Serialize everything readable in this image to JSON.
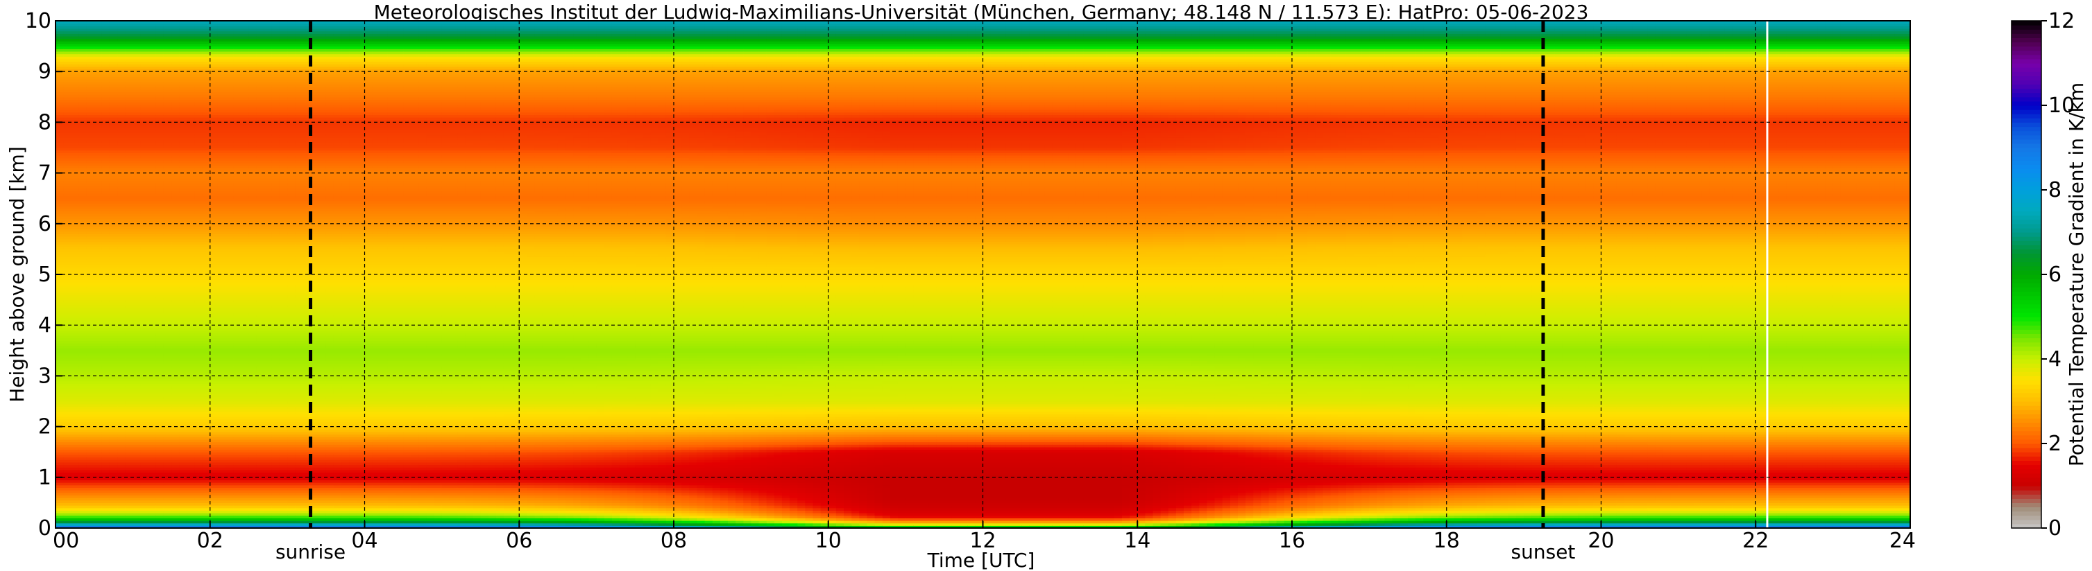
{
  "chart_data": {
    "type": "heatmap",
    "title": "Meteorologisches Institut der Ludwig-Maximilians-Universität (München, Germany; 48.148 N / 11.573 E):    HatPro: 05-06-2023",
    "xlabel": "Time [UTC]",
    "ylabel": "Height above ground [km]",
    "colorbar_label": "Potential Temperature Gradient in K/km",
    "xlim": [
      0,
      24
    ],
    "ylim": [
      0,
      10
    ],
    "clim": [
      0,
      12
    ],
    "x_ticks": [
      0,
      2,
      4,
      6,
      8,
      10,
      12,
      14,
      16,
      18,
      20,
      22,
      24
    ],
    "x_tick_labels": [
      "00",
      "02",
      "04",
      "06",
      "08",
      "10",
      "12",
      "14",
      "16",
      "18",
      "20",
      "22",
      "24"
    ],
    "y_ticks": [
      0,
      1,
      2,
      3,
      4,
      5,
      6,
      7,
      8,
      9,
      10
    ],
    "y_tick_labels": [
      "0",
      "1",
      "2",
      "3",
      "4",
      "5",
      "6",
      "7",
      "8",
      "9",
      "10"
    ],
    "colorbar_ticks": [
      0,
      2,
      4,
      6,
      8,
      10,
      12
    ],
    "colorbar_tick_labels": [
      "0",
      "2",
      "4",
      "6",
      "8",
      "10",
      "12"
    ],
    "grid": true,
    "colormap": [
      {
        "v": 0,
        "color": "#c8c8c8"
      },
      {
        "v": 0.5,
        "color": "#a08c78"
      },
      {
        "v": 1.0,
        "color": "#c80000"
      },
      {
        "v": 1.5,
        "color": "#e40000"
      },
      {
        "v": 2.0,
        "color": "#ff5a00"
      },
      {
        "v": 2.5,
        "color": "#ff8c00"
      },
      {
        "v": 3.0,
        "color": "#ffbe00"
      },
      {
        "v": 3.5,
        "color": "#ffe000"
      },
      {
        "v": 4.0,
        "color": "#c8f000"
      },
      {
        "v": 4.5,
        "color": "#78e600"
      },
      {
        "v": 5.0,
        "color": "#00e600"
      },
      {
        "v": 5.5,
        "color": "#00c800"
      },
      {
        "v": 6.0,
        "color": "#00aa00"
      },
      {
        "v": 6.5,
        "color": "#009632"
      },
      {
        "v": 7.0,
        "color": "#009a8c"
      },
      {
        "v": 7.5,
        "color": "#00aabe"
      },
      {
        "v": 8.0,
        "color": "#00a0dc"
      },
      {
        "v": 8.5,
        "color": "#0a8cf0"
      },
      {
        "v": 9.0,
        "color": "#1478e6"
      },
      {
        "v": 9.5,
        "color": "#0a50dc"
      },
      {
        "v": 10.0,
        "color": "#0000c8"
      },
      {
        "v": 10.5,
        "color": "#5000b4"
      },
      {
        "v": 11.0,
        "color": "#7800aa"
      },
      {
        "v": 11.5,
        "color": "#500050"
      },
      {
        "v": 12.0,
        "color": "#000000"
      }
    ],
    "profile": {
      "heights_km": [
        0,
        0.1,
        0.2,
        0.3,
        0.45,
        0.6,
        1.0,
        1.5,
        2.0,
        2.5,
        3.0,
        3.5,
        4.0,
        4.5,
        5.0,
        5.5,
        6.0,
        6.5,
        7.0,
        7.5,
        8.0,
        8.5,
        9.0,
        9.3,
        9.5,
        9.7,
        10.0
      ],
      "values_night": [
        9.5,
        7.0,
        5.0,
        4.0,
        3.0,
        2.6,
        1.4,
        2.0,
        3.2,
        3.8,
        4.1,
        4.3,
        4.0,
        3.7,
        3.4,
        3.1,
        2.6,
        2.2,
        2.4,
        1.9,
        1.8,
        2.3,
        2.7,
        3.6,
        5.2,
        6.5,
        7.5
      ],
      "values_day": [
        6.0,
        3.0,
        1.6,
        1.3,
        1.1,
        1.0,
        1.0,
        1.3,
        3.0,
        3.8,
        4.0,
        4.3,
        4.0,
        3.7,
        3.4,
        3.0,
        2.5,
        2.2,
        2.4,
        1.8,
        1.7,
        2.3,
        2.7,
        3.6,
        5.2,
        6.5,
        7.5
      ]
    },
    "events": [
      {
        "label": "sunrise",
        "time": 3.3
      },
      {
        "label": "sunset",
        "time": 19.25
      }
    ],
    "data_gap_time": 22.15
  }
}
